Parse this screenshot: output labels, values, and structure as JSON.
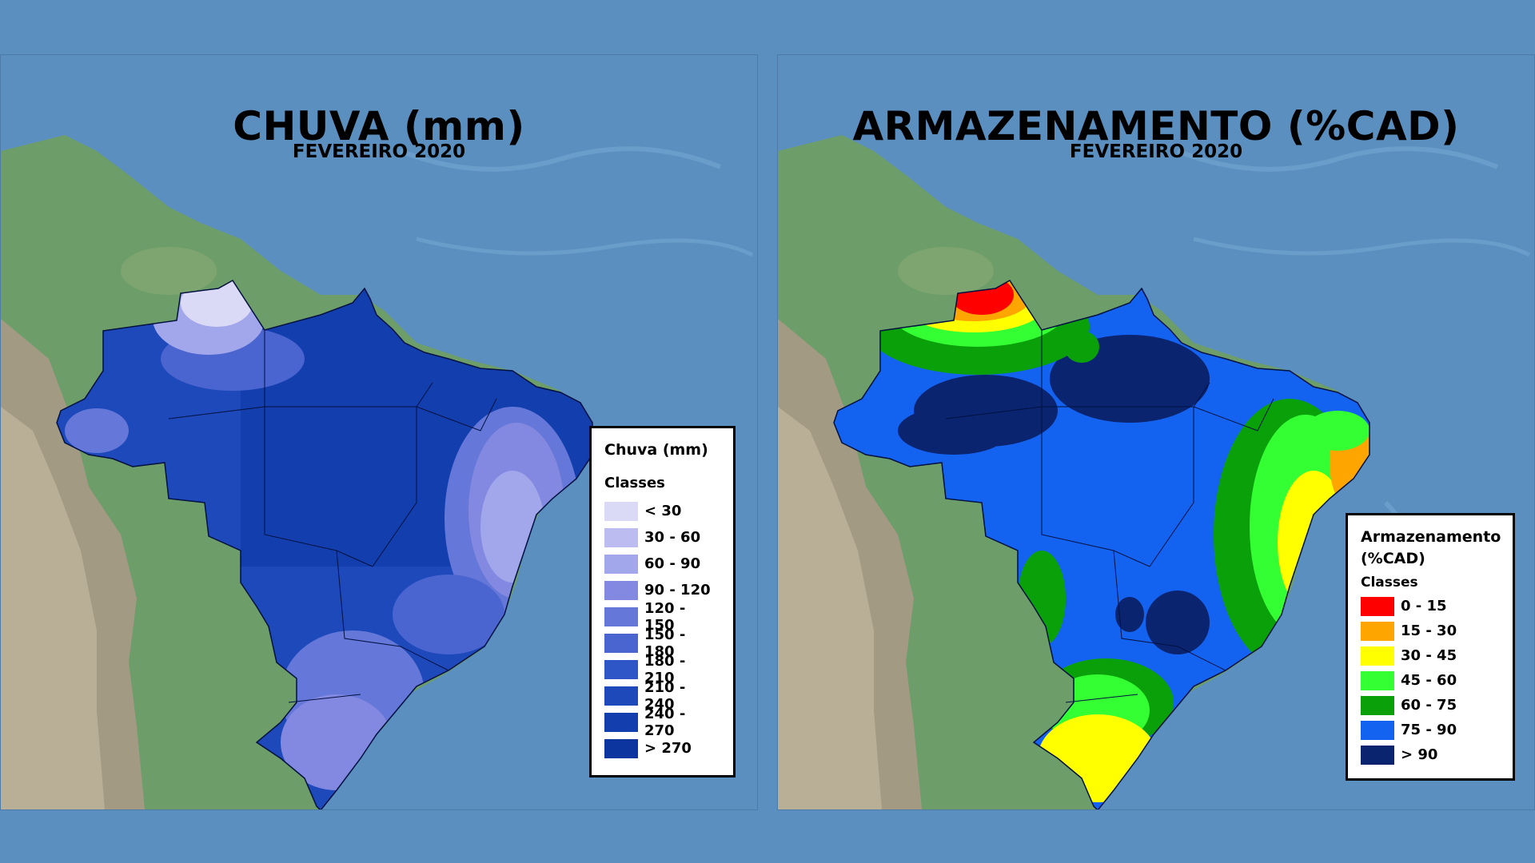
{
  "rain_panel": {
    "title": "CHUVA (mm)",
    "subtitle": "FEVEREIRO 2020",
    "legend": {
      "title": "Chuva (mm)",
      "classes_label": "Classes",
      "items": [
        {
          "label": "< 30",
          "color": "#dad9f6"
        },
        {
          "label": "30 - 60",
          "color": "#bcbcf0"
        },
        {
          "label": "60 - 90",
          "color": "#a2a6ea"
        },
        {
          "label": "90 - 120",
          "color": "#8389e0"
        },
        {
          "label": "120 - 150",
          "color": "#6577d8"
        },
        {
          "label": "150 - 180",
          "color": "#4a64d0"
        },
        {
          "label": "180 - 210",
          "color": "#2f56c6"
        },
        {
          "label": "210 - 240",
          "color": "#1d49bb"
        },
        {
          "label": "240 - 270",
          "color": "#133fae"
        },
        {
          "label": "> 270",
          "color": "#0d35a0"
        }
      ]
    }
  },
  "storage_panel": {
    "title": "ARMAZENAMENTO (%CAD)",
    "subtitle": "FEVEREIRO 2020",
    "legend": {
      "title": "Armazenamento (%CAD)",
      "classes_label": "Classes",
      "items": [
        {
          "label": "0 - 15",
          "color": "#ff0000"
        },
        {
          "label": "15 - 30",
          "color": "#ffa500"
        },
        {
          "label": "30 - 45",
          "color": "#ffff00"
        },
        {
          "label": "45 - 60",
          "color": "#33ff33"
        },
        {
          "label": "60 - 75",
          "color": "#0aa00a"
        },
        {
          "label": "75 - 90",
          "color": "#1463f0"
        },
        {
          "label": "> 90",
          "color": "#0a2470"
        }
      ]
    }
  },
  "colors": {
    "ocean": "#5b8fbf",
    "land": "#6d9e6a",
    "andes": "#a39a84"
  }
}
